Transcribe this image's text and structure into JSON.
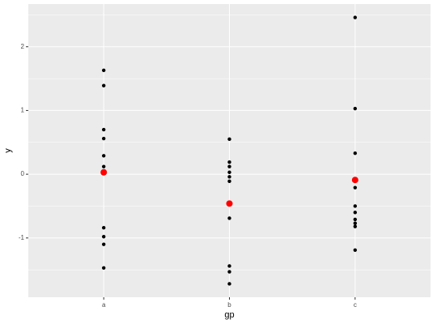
{
  "chart_data": {
    "type": "scatter",
    "x_label": "gp",
    "y_label": "y",
    "categories": [
      "a",
      "b",
      "c"
    ],
    "series": [
      {
        "color": "#000000",
        "size": 2.2,
        "x": [
          "a",
          "a",
          "a",
          "a",
          "a",
          "a",
          "a",
          "a",
          "a",
          "a",
          "b",
          "b",
          "b",
          "b",
          "b",
          "b",
          "b",
          "b",
          "b",
          "b",
          "c",
          "c",
          "c",
          "c",
          "c",
          "c",
          "c",
          "c",
          "c",
          "c"
        ],
        "values": [
          1.63,
          1.39,
          0.7,
          0.56,
          0.29,
          0.12,
          -0.84,
          -0.98,
          -1.1,
          -1.47,
          0.55,
          0.19,
          0.12,
          0.03,
          -0.04,
          -0.11,
          -0.69,
          -1.44,
          -1.53,
          -1.72,
          2.46,
          1.03,
          0.33,
          -0.21,
          -0.5,
          -0.6,
          -0.71,
          -0.77,
          -0.82,
          -1.19
        ]
      },
      {
        "color": "#ff0000",
        "size": 4,
        "x": [
          "a",
          "b",
          "c"
        ],
        "values": [
          0.03,
          -0.46,
          -0.09
        ]
      }
    ],
    "ylim": [
      -1.93,
      2.67
    ],
    "yticks": [
      -1,
      0,
      1,
      2
    ],
    "grid": true
  }
}
